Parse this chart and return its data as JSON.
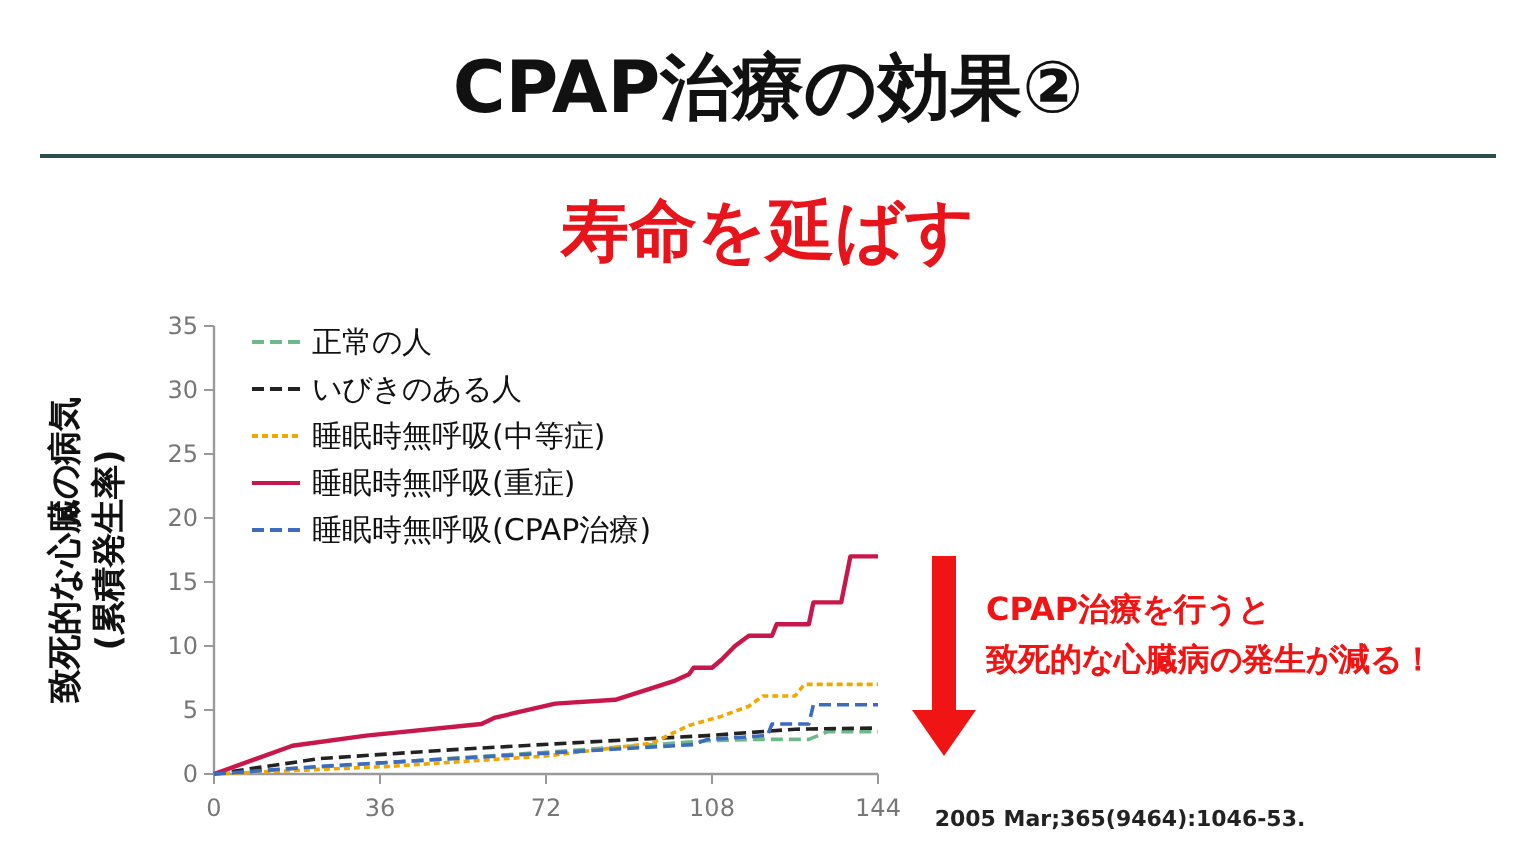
{
  "chart_data": {
    "type": "line",
    "title": "CPAP治療の効果②",
    "subtitle": "寿命を延ばす",
    "ylabel": "致死的な心臓の病気 (累積発生率)",
    "xlim": [
      0,
      144
    ],
    "xticks": [
      0,
      36,
      72,
      108,
      144
    ],
    "ylim": [
      0,
      35
    ],
    "yticks": [
      0,
      5,
      10,
      15,
      20,
      25,
      30,
      35
    ],
    "grid": false,
    "legend": "top left",
    "marker": "none",
    "annotations": [
      "CPAP治療を行うと",
      "致死的な心臓病の発生が減る！",
      "2005 Mar;365(9464):1046-53."
    ],
    "series": [
      {
        "name": "正常の人",
        "color": "#6fb88a",
        "line_style": "dashed",
        "x": [
          0,
          38,
          72,
          107,
          117,
          129,
          133,
          144
        ],
        "values": [
          0,
          0.9,
          1.7,
          2.6,
          2.7,
          2.7,
          3.3,
          3.3
        ]
      },
      {
        "name": "いびきのある人",
        "color": "#222222",
        "line_style": "dashed",
        "x": [
          0,
          23,
          52,
          81,
          107,
          126,
          144
        ],
        "values": [
          0,
          1.2,
          1.9,
          2.5,
          3.0,
          3.5,
          3.6
        ]
      },
      {
        "name": "睡眠時無呼吸(中等症)",
        "color": "#f0a800",
        "line_style": "dotted",
        "x": [
          0,
          38,
          72,
          95,
          103,
          110,
          116,
          119,
          126,
          128,
          144
        ],
        "values": [
          0,
          0.6,
          1.4,
          2.4,
          3.8,
          4.5,
          5.3,
          6.1,
          6.1,
          7.0,
          7.0
        ]
      },
      {
        "name": "睡眠時無呼吸(重症)",
        "color": "#c8174b",
        "line_style": "solid",
        "x": [
          0,
          17,
          33,
          58,
          61,
          74,
          87,
          95,
          100,
          103,
          104,
          108,
          110,
          113,
          116,
          121,
          122,
          129,
          130,
          136,
          138,
          144
        ],
        "values": [
          0,
          2.2,
          3.0,
          3.9,
          4.4,
          5.5,
          5.8,
          6.7,
          7.3,
          7.8,
          8.3,
          8.3,
          8.9,
          10.0,
          10.8,
          10.8,
          11.7,
          11.7,
          13.4,
          13.4,
          17.0,
          17.0
        ]
      },
      {
        "name": "睡眠時無呼吸(CPAP治療)",
        "color": "#3b6cc0",
        "line_style": "dashed",
        "x": [
          0,
          23,
          66,
          104,
          107,
          120,
          121,
          129,
          130,
          144
        ],
        "values": [
          0,
          0.6,
          1.5,
          2.3,
          2.7,
          3.0,
          3.9,
          3.9,
          5.4,
          5.4
        ]
      }
    ]
  }
}
